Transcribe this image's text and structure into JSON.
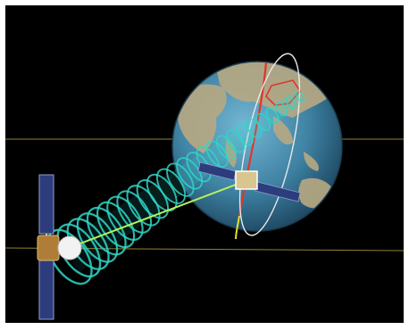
{
  "scene": {
    "subject": "satellite-link-visualization",
    "colors": {
      "frame": "#ffffff",
      "space": "#000000",
      "ocean": "#3f82a3",
      "land": "#b9a982",
      "beam": "#2fd6c8",
      "equator_line": "#b8a640",
      "orbit_white": "#e9e9e9",
      "track_red": "#e0352c",
      "track_yellow": "#e6de2a",
      "link_green": "#b6f25a",
      "panel_blue": "#2d3c7c"
    },
    "icons": [
      "earth-globe-icon",
      "relay-satellite-icon",
      "ground-satellite-icon"
    ]
  }
}
